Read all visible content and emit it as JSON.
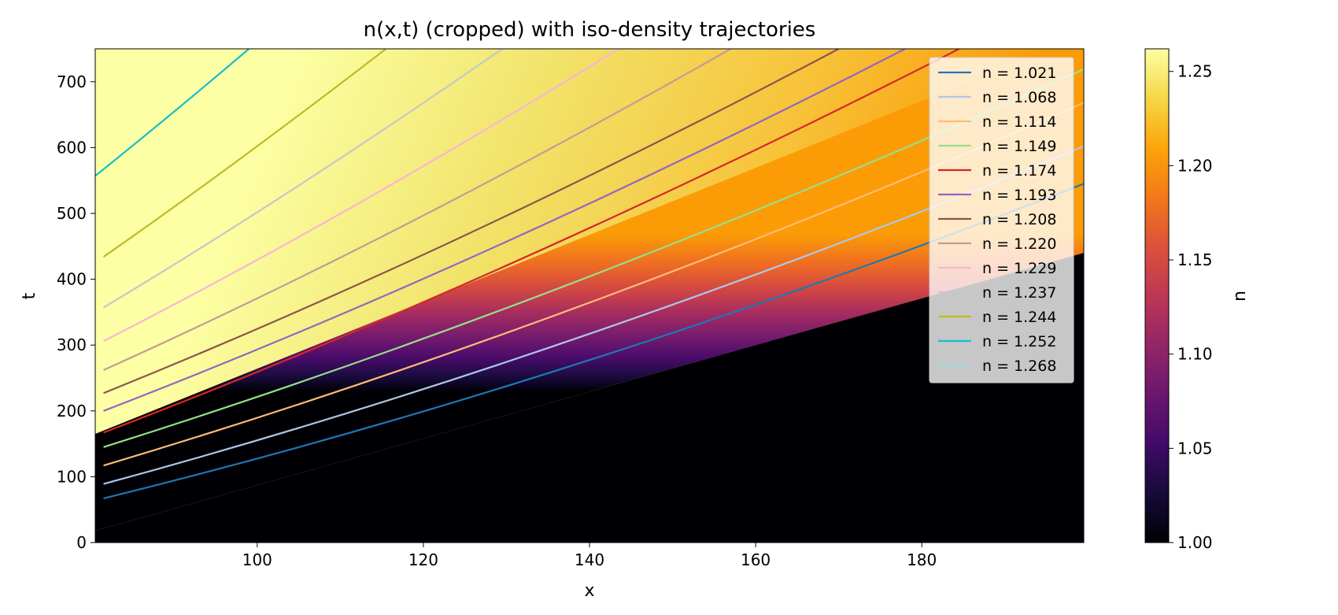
{
  "chart_data": {
    "type": "heatmap",
    "title": "n(x,t) (cropped) with iso-density trajectories",
    "xlabel": "x",
    "ylabel": "t",
    "xlim": [
      80.5,
      199.5
    ],
    "ylim": [
      0,
      750
    ],
    "x_ticks": [
      "100",
      "120",
      "140",
      "160",
      "180"
    ],
    "x_tick_values": [
      100,
      120,
      140,
      160,
      180
    ],
    "y_ticks": [
      "0",
      "100",
      "200",
      "300",
      "400",
      "500",
      "600",
      "700"
    ],
    "y_tick_values": [
      0,
      100,
      200,
      300,
      400,
      500,
      600,
      700
    ],
    "grid": false,
    "legend_position": "top-right",
    "colormap": "inferno",
    "colorbar": {
      "label": "n",
      "range": [
        1.0,
        1.262
      ],
      "ticks": [
        "1.00",
        "1.05",
        "1.10",
        "1.15",
        "1.20",
        "1.25"
      ],
      "tick_values": [
        1.0,
        1.05,
        1.1,
        1.15,
        1.2,
        1.25
      ]
    },
    "series": [
      {
        "name": "n = 1.021",
        "color": "#1f77b4",
        "x": [
          81.5,
          199.5
        ],
        "t": [
          67,
          545
        ]
      },
      {
        "name": "n = 1.068",
        "color": "#aec7e8",
        "x": [
          81.5,
          199.5
        ],
        "t": [
          89,
          602
        ]
      },
      {
        "name": "n = 1.114",
        "color": "#ffbb78",
        "x": [
          81.5,
          199.5
        ],
        "t": [
          117,
          668
        ]
      },
      {
        "name": "n = 1.149",
        "color": "#98df8a",
        "x": [
          81.5,
          199.5
        ],
        "t": [
          145,
          719
        ]
      },
      {
        "name": "n = 1.174",
        "color": "#d62728",
        "x": [
          81.5,
          184.5
        ],
        "t": [
          167,
          750
        ]
      },
      {
        "name": "n = 1.193",
        "color": "#9467bd",
        "x": [
          81.5,
          178
        ],
        "t": [
          200,
          750
        ]
      },
      {
        "name": "n = 1.208",
        "color": "#8c564b",
        "x": [
          81.5,
          170
        ],
        "t": [
          227,
          750
        ]
      },
      {
        "name": "n = 1.220",
        "color": "#c49c94",
        "x": [
          81.5,
          157
        ],
        "t": [
          262,
          750
        ]
      },
      {
        "name": "n = 1.229",
        "color": "#f7b6d2",
        "x": [
          81.5,
          143.5
        ],
        "t": [
          306,
          750
        ]
      },
      {
        "name": "n = 1.237",
        "color": "#c7c7c7",
        "x": [
          81.5,
          129.5
        ],
        "t": [
          357,
          750
        ]
      },
      {
        "name": "n = 1.244",
        "color": "#bcbd22",
        "x": [
          81.5,
          115.5
        ],
        "t": [
          434,
          750
        ]
      },
      {
        "name": "n = 1.252",
        "color": "#17becf",
        "x": [
          80.5,
          99
        ],
        "t": [
          557,
          750
        ]
      },
      {
        "name": "n = 1.268",
        "color": "#9edae5",
        "x": [],
        "t": []
      }
    ]
  }
}
